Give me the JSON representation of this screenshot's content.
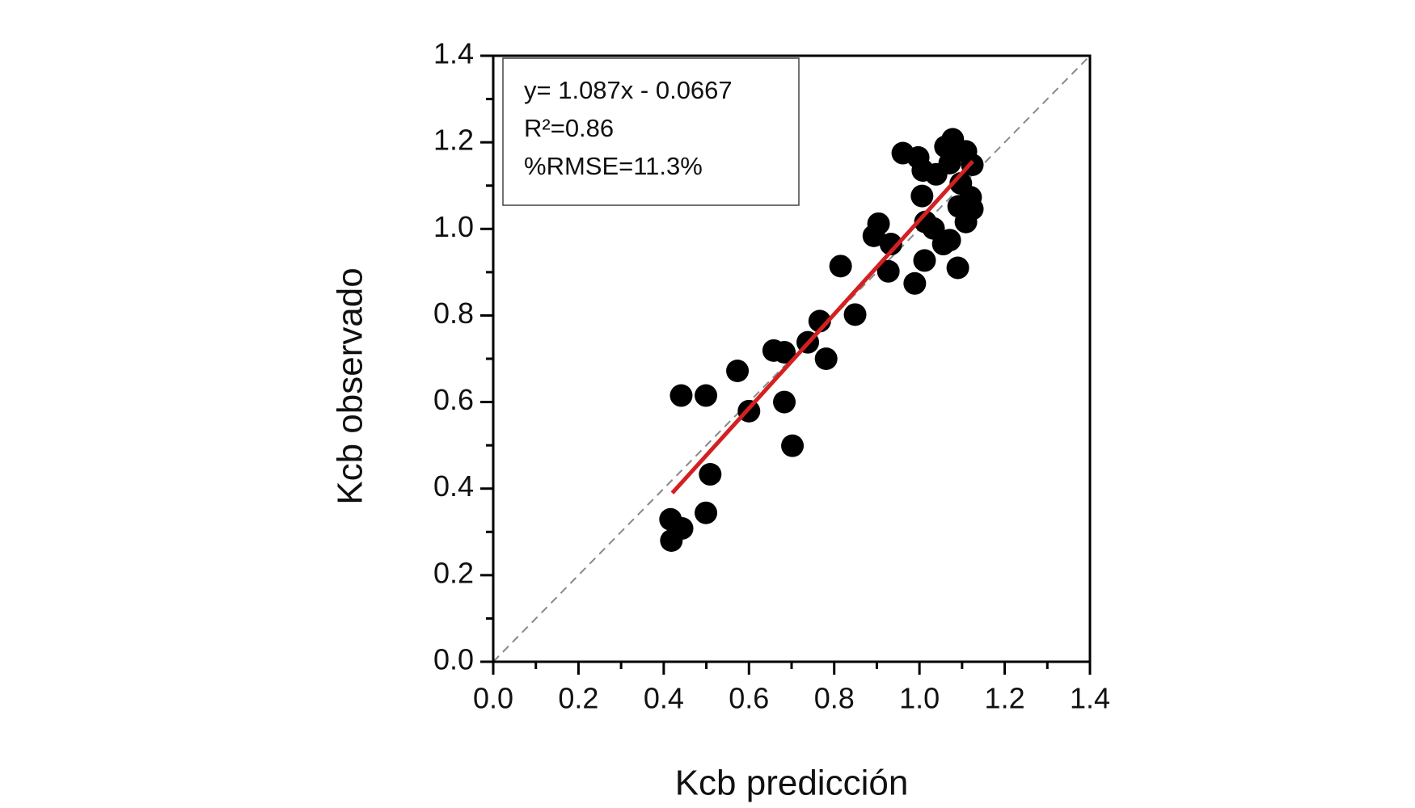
{
  "chart_data": {
    "type": "scatter",
    "x_label": "Kcb predicción",
    "y_label": "Kcb observado",
    "annotations": [
      "y= 1.087x - 0.0667",
      "R²=0.86",
      "%RMSE=11.3%"
    ],
    "xlim": [
      0,
      1.4
    ],
    "ylim": [
      0,
      1.4
    ],
    "xticks": [
      {
        "value": 0,
        "label": "0.0"
      },
      0.2,
      0.4,
      0.6,
      0.8,
      {
        "value": 1,
        "label": "1.0"
      },
      1.2,
      1.4
    ],
    "yticks": [
      {
        "value": 0,
        "label": "0.0"
      },
      0.2,
      0.4,
      0.6,
      0.8,
      {
        "value": 1,
        "label": "1.0"
      },
      1.2,
      1.4
    ],
    "xminor": [
      0.1,
      0.3,
      0.5,
      0.7,
      0.9,
      1.1,
      1.3
    ],
    "yminor": [
      0.1,
      0.3,
      0.5,
      0.7,
      0.9,
      1.1,
      1.3
    ],
    "color": "#000000",
    "fit": {
      "slope": 1.087,
      "intercept": -0.0667,
      "xrange": [
        0.42,
        1.125
      ],
      "color": "#d42020"
    },
    "identity_line_color": "#888888",
    "series": [
      {
        "name": null,
        "color": "#000000",
        "x": [
          0.416,
          0.443,
          0.418,
          0.499,
          0.509,
          0.441,
          0.499,
          0.573,
          0.6,
          0.658,
          0.683,
          0.683,
          0.702,
          0.738,
          0.766,
          0.781,
          0.815,
          0.849,
          0.893,
          0.904,
          0.933,
          0.927,
          0.989,
          1.012,
          1.006,
          1.014,
          1.033,
          1.056,
          1.071,
          1.09,
          0.961,
          0.997,
          1.008,
          1.039,
          1.061,
          1.078,
          1.071,
          1.109,
          1.124,
          1.12,
          1.124,
          1.109,
          1.092,
          1.097
        ],
        "values": [
          0.329,
          0.308,
          0.28,
          0.344,
          0.433,
          0.615,
          0.615,
          0.672,
          0.579,
          0.719,
          0.715,
          0.6,
          0.499,
          0.738,
          0.787,
          0.7,
          0.914,
          0.802,
          0.984,
          1.012,
          0.965,
          0.902,
          0.874,
          0.927,
          1.076,
          1.016,
          1.001,
          0.965,
          0.974,
          0.91,
          1.175,
          1.165,
          1.135,
          1.126,
          1.19,
          1.207,
          1.152,
          1.179,
          1.148,
          1.073,
          1.046,
          1.016,
          1.052,
          1.105
        ]
      }
    ]
  }
}
